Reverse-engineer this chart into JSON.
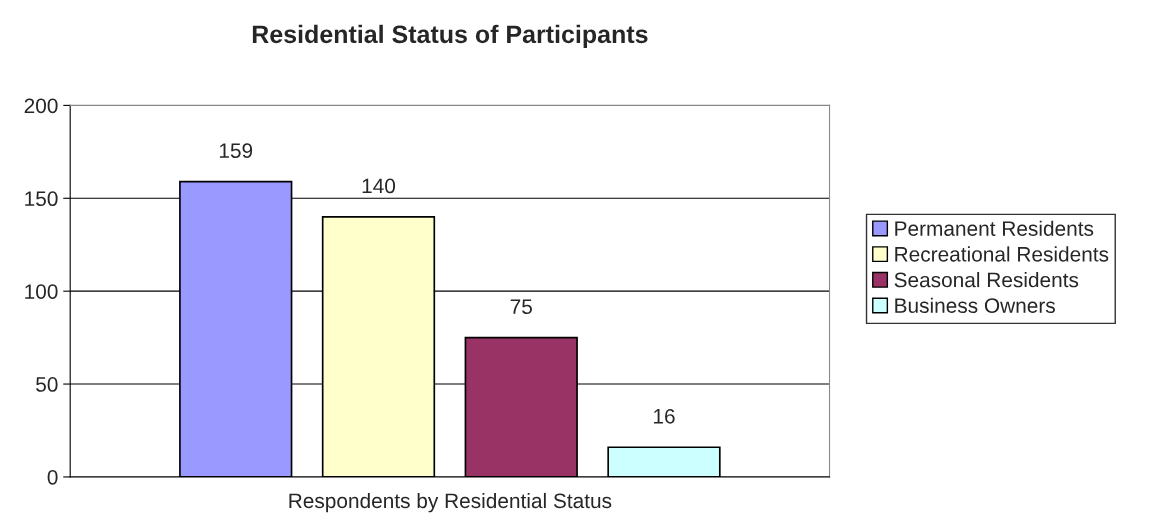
{
  "chart_data": {
    "type": "bar",
    "title": "Residential Status of Participants",
    "xlabel": "Respondents by Residential Status",
    "categories": [
      null
    ],
    "series": [
      {
        "name": "Permanent Residents",
        "color": "#9999ff",
        "values": [
          159
        ]
      },
      {
        "name": "Recreational Residents",
        "color": "#ffffcc",
        "values": [
          140
        ]
      },
      {
        "name": "Seasonal Residents",
        "color": "#993366",
        "values": [
          75
        ]
      },
      {
        "name": "Business Owners",
        "color": "#ccffff",
        "values": [
          16
        ]
      }
    ],
    "ylim": [
      0,
      200
    ],
    "yticks": [
      0,
      50,
      100,
      150,
      200
    ],
    "grid": "y",
    "legend": "right",
    "data_labels": true
  }
}
